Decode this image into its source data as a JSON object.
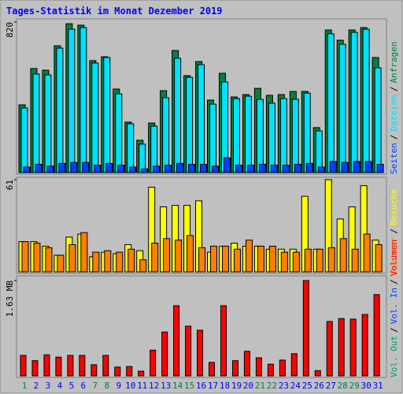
{
  "chart_data": [
    {
      "type": "bar",
      "title": "Tages-Statistik im Monat Dezember 2019",
      "legend_separator": "/",
      "ylim": [
        0,
        820
      ],
      "yticks": [
        820
      ],
      "series": [
        {
          "name": "Anfragen",
          "color": "#008040",
          "values": [
            369,
            567,
            558,
            691,
            811,
            803,
            610,
            631,
            455,
            275,
            176,
            270,
            446,
            665,
            528,
            605,
            395,
            541,
            412,
            425,
            459,
            421,
            425,
            442,
            442,
            245,
            777,
            721,
            777,
            790,
            627
          ]
        },
        {
          "name": "Dateien",
          "color": "#00e0ff",
          "values": [
            352,
            537,
            532,
            678,
            781,
            790,
            597,
            627,
            429,
            266,
            155,
            253,
            408,
            623,
            519,
            588,
            373,
            494,
            403,
            416,
            399,
            378,
            403,
            399,
            433,
            227,
            756,
            699,
            764,
            781,
            571
          ]
        },
        {
          "name": "Seiten",
          "color": "#0040ff",
          "values": [
            30,
            45,
            35,
            50,
            55,
            55,
            40,
            50,
            40,
            30,
            20,
            35,
            40,
            50,
            45,
            45,
            35,
            80,
            40,
            40,
            45,
            40,
            40,
            45,
            50,
            30,
            60,
            55,
            60,
            60,
            45
          ]
        }
      ]
    },
    {
      "type": "bar",
      "legend_separator": "/",
      "ylim": [
        0,
        61
      ],
      "yticks": [
        61
      ],
      "series": [
        {
          "name": "Besuche",
          "color": "#ffff00",
          "values": [
            20,
            20,
            17,
            11,
            23,
            25,
            10,
            13,
            12,
            18,
            14,
            56,
            43,
            44,
            44,
            47,
            13,
            17,
            19,
            17,
            17,
            15,
            15,
            15,
            50,
            15,
            61,
            35,
            43,
            57,
            21
          ]
        },
        {
          "name": "Rechner",
          "color": "#ff8000",
          "values": [
            20,
            19,
            16,
            11,
            18,
            26,
            13,
            14,
            13,
            15,
            8,
            19,
            22,
            21,
            24,
            16,
            17,
            17,
            15,
            21,
            17,
            17,
            13,
            13,
            15,
            15,
            16,
            22,
            15,
            25,
            18
          ]
        }
      ]
    },
    {
      "type": "bar",
      "legend_separator": "/",
      "ylim": [
        0,
        1.63
      ],
      "yticks": [
        {
          "value": 1.63,
          "label": "1.63 MB"
        }
      ],
      "legend_extra": [
        {
          "name": "Vol. In",
          "color": "#0040ff"
        },
        {
          "name": "Vol. Out",
          "color": "#00a060"
        }
      ],
      "categories": [
        "1",
        "2",
        "3",
        "4",
        "5",
        "6",
        "7",
        "8",
        "9",
        "10",
        "11",
        "12",
        "13",
        "14",
        "15",
        "16",
        "17",
        "18",
        "19",
        "20",
        "21",
        "22",
        "23",
        "24",
        "25",
        "26",
        "27",
        "28",
        "29",
        "30",
        "31"
      ],
      "category_colors": [
        "#008040",
        "#0000ff",
        "#0000ff",
        "#0000ff",
        "#0000ff",
        "#0000ff",
        "#008040",
        "#008040",
        "#0000ff",
        "#0000ff",
        "#0000ff",
        "#0000ff",
        "#0000ff",
        "#008040",
        "#008040",
        "#0000ff",
        "#0000ff",
        "#0000ff",
        "#0000ff",
        "#0000ff",
        "#008040",
        "#008040",
        "#0000ff",
        "#0000ff",
        "#0000ff",
        "#0000ff",
        "#0000ff",
        "#008040",
        "#008040",
        "#0000ff",
        "#0000ff"
      ],
      "series": [
        {
          "name": "Volumen",
          "color": "#ff0000",
          "values": [
            0.35,
            0.26,
            0.36,
            0.32,
            0.35,
            0.35,
            0.19,
            0.35,
            0.15,
            0.16,
            0.08,
            0.44,
            0.75,
            1.2,
            0.85,
            0.78,
            0.23,
            1.2,
            0.26,
            0.42,
            0.31,
            0.2,
            0.27,
            0.38,
            1.63,
            0.09,
            0.93,
            0.98,
            0.97,
            1.05,
            1.39
          ]
        }
      ]
    }
  ]
}
